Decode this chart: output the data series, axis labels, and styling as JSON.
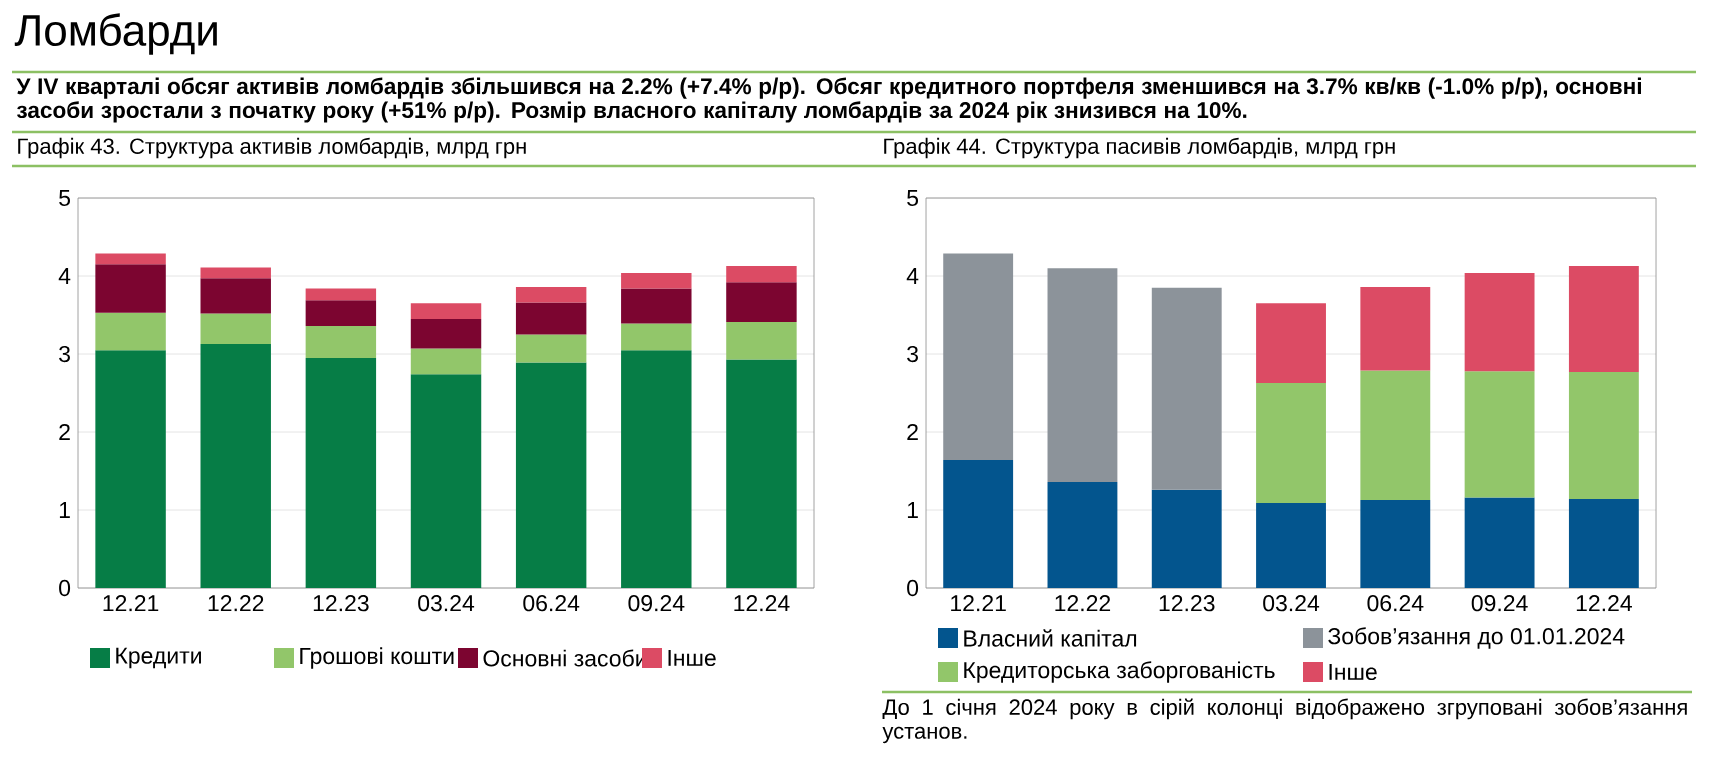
{
  "chart_data": [
    {
      "type": "other",
      "title": "Ломбарди",
      "subtitle": "У IV кварталі обсяг активів ломбардів збільшився на 2.2% (+7.4% р/р). Обсяг кредитного портфеля зменшився на 3.7% кв/кв (-1.0% р/р), основні засоби зростали з початку року (+51% р/р). Розмір власного капіталу ломбардів за 2024 рік знизився на 10%."
    },
    {
      "type": "bar",
      "title": "Графік 43. Структура активів ломбардів, млрд грн",
      "stacked": true,
      "categories": [
        "12.21",
        "12.22",
        "12.23",
        "03.24",
        "06.24",
        "09.24",
        "12.24"
      ],
      "ylim": [
        0,
        5
      ],
      "yticks": [
        0,
        1,
        2,
        3,
        4,
        5
      ],
      "grid": "y",
      "legend": "bottom",
      "series": [
        {
          "name": "Кредити",
          "color": "#067d46",
          "values": [
            3.05,
            3.13,
            2.95,
            2.74,
            2.89,
            3.05,
            2.93
          ]
        },
        {
          "name": "Грошові кошти",
          "color": "#92c66a",
          "values": [
            0.48,
            0.39,
            0.41,
            0.33,
            0.36,
            0.34,
            0.48
          ]
        },
        {
          "name": "Основні засоби",
          "color": "#7c0530",
          "values": [
            0.62,
            0.45,
            0.33,
            0.38,
            0.41,
            0.45,
            0.51
          ]
        },
        {
          "name": "Інше",
          "color": "#dc4b64",
          "values": [
            0.14,
            0.14,
            0.15,
            0.2,
            0.2,
            0.2,
            0.21
          ]
        }
      ]
    },
    {
      "type": "bar",
      "title": "Графік 44. Структура пасивів ломбардів, млрд грн",
      "stacked": true,
      "categories": [
        "12.21",
        "12.22",
        "12.23",
        "03.24",
        "06.24",
        "09.24",
        "12.24"
      ],
      "ylim": [
        0,
        5
      ],
      "yticks": [
        0,
        1,
        2,
        3,
        4,
        5
      ],
      "grid": "y",
      "legend": "bottom",
      "annotations": [
        "До 1 січня 2024 року в сірій колонці відображено згруповані зобов’язання установ."
      ],
      "series": [
        {
          "name": "Власний капітал",
          "color": "#03558e",
          "values": [
            1.64,
            1.36,
            1.26,
            1.09,
            1.13,
            1.16,
            1.14
          ]
        },
        {
          "name": "Зобов’язання до 01.01.2024",
          "color": "#8c939a",
          "values": [
            2.65,
            2.74,
            2.59,
            null,
            null,
            null,
            null
          ]
        },
        {
          "name": "Кредиторська заборгованість",
          "color": "#92c66a",
          "values": [
            null,
            null,
            null,
            1.54,
            1.66,
            1.62,
            1.63
          ]
        },
        {
          "name": "Інше",
          "color": "#dc4b64",
          "values": [
            null,
            null,
            null,
            1.02,
            1.07,
            1.26,
            1.36
          ]
        }
      ]
    }
  ]
}
